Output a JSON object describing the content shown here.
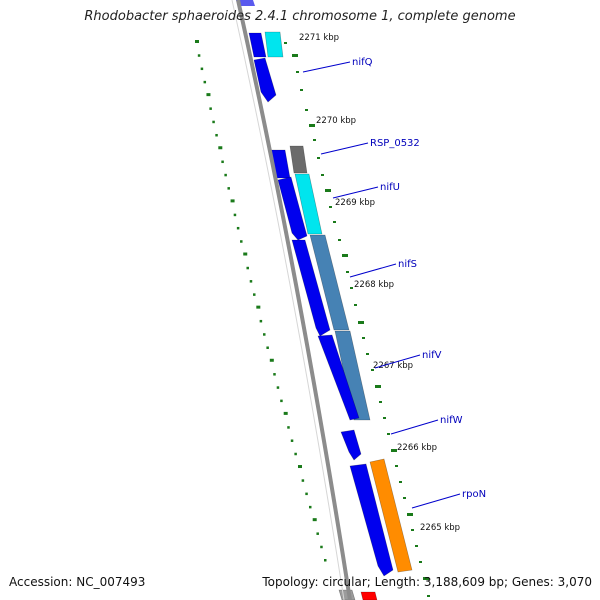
{
  "title": "Rhodobacter sphaeroides 2.4.1 chromosome 1, complete genome",
  "footer": {
    "accession": "Accession: NC_007493",
    "topology": "Topology: circular; Length: 3,188,609 bp; Genes: 3,070"
  },
  "colors": {
    "backbone": "#8c8c8c",
    "tick": "#1a7a1a",
    "forward_cds": "#0000ee",
    "label_line": "#0000cc",
    "nifQ_box": "#00e5ee",
    "RSP_0532_box": "#6b6b6b",
    "nifU_box": "#00e5ee",
    "nifS_nifV_box": "#4682b4",
    "rpoN_box": "#ff8c00",
    "edge_red": "#ff0000"
  },
  "kbp_labels": [
    "2271 kbp",
    "2270 kbp",
    "2269 kbp",
    "2268 kbp",
    "2267 kbp",
    "2266 kbp",
    "2265 kbp"
  ],
  "gene_labels": [
    "nifQ",
    "RSP_0532",
    "nifU",
    "nifS",
    "nifV",
    "nifW",
    "rpoN"
  ]
}
